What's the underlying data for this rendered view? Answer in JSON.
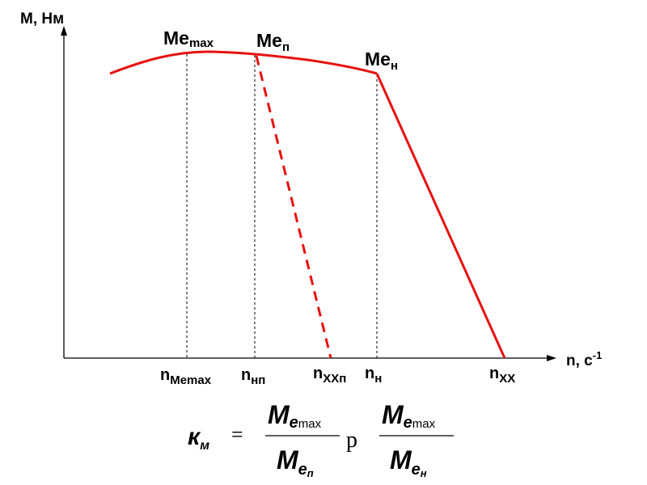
{
  "axes": {
    "y_label": "М, Нм",
    "x_label_main": "n, c",
    "x_label_sup": "-1"
  },
  "points": {
    "me_max": {
      "main": "Me",
      "sub": "max"
    },
    "me_p": {
      "main": "Me",
      "sub": "п"
    },
    "me_n": {
      "main": "Me",
      "sub": "н"
    }
  },
  "ticks": {
    "n_memax": {
      "main": "n",
      "sub": "Memax"
    },
    "n_np": {
      "main": "n",
      "sub": "нп"
    },
    "n_xxp": {
      "main": "n",
      "sub": "XXп"
    },
    "n_n": {
      "main": "n",
      "sub": "н"
    },
    "n_xx": {
      "main": "n",
      "sub": "XX"
    }
  },
  "formula": {
    "lhs_main": "к",
    "lhs_sub": "м",
    "equals": "=",
    "frac1_num_main": "M",
    "frac1_num_sub": "e",
    "frac1_num_subsub": "max",
    "frac1_den_main": "M",
    "frac1_den_sub": "e",
    "frac1_den_subsub": "п",
    "relation": "р",
    "frac2_num_main": "M",
    "frac2_num_sub": "e",
    "frac2_num_subsub": "max",
    "frac2_den_main": "M",
    "frac2_den_sub": "e",
    "frac2_den_subsub": "н"
  },
  "colors": {
    "curve": "#e81010",
    "axis": "#000000"
  }
}
